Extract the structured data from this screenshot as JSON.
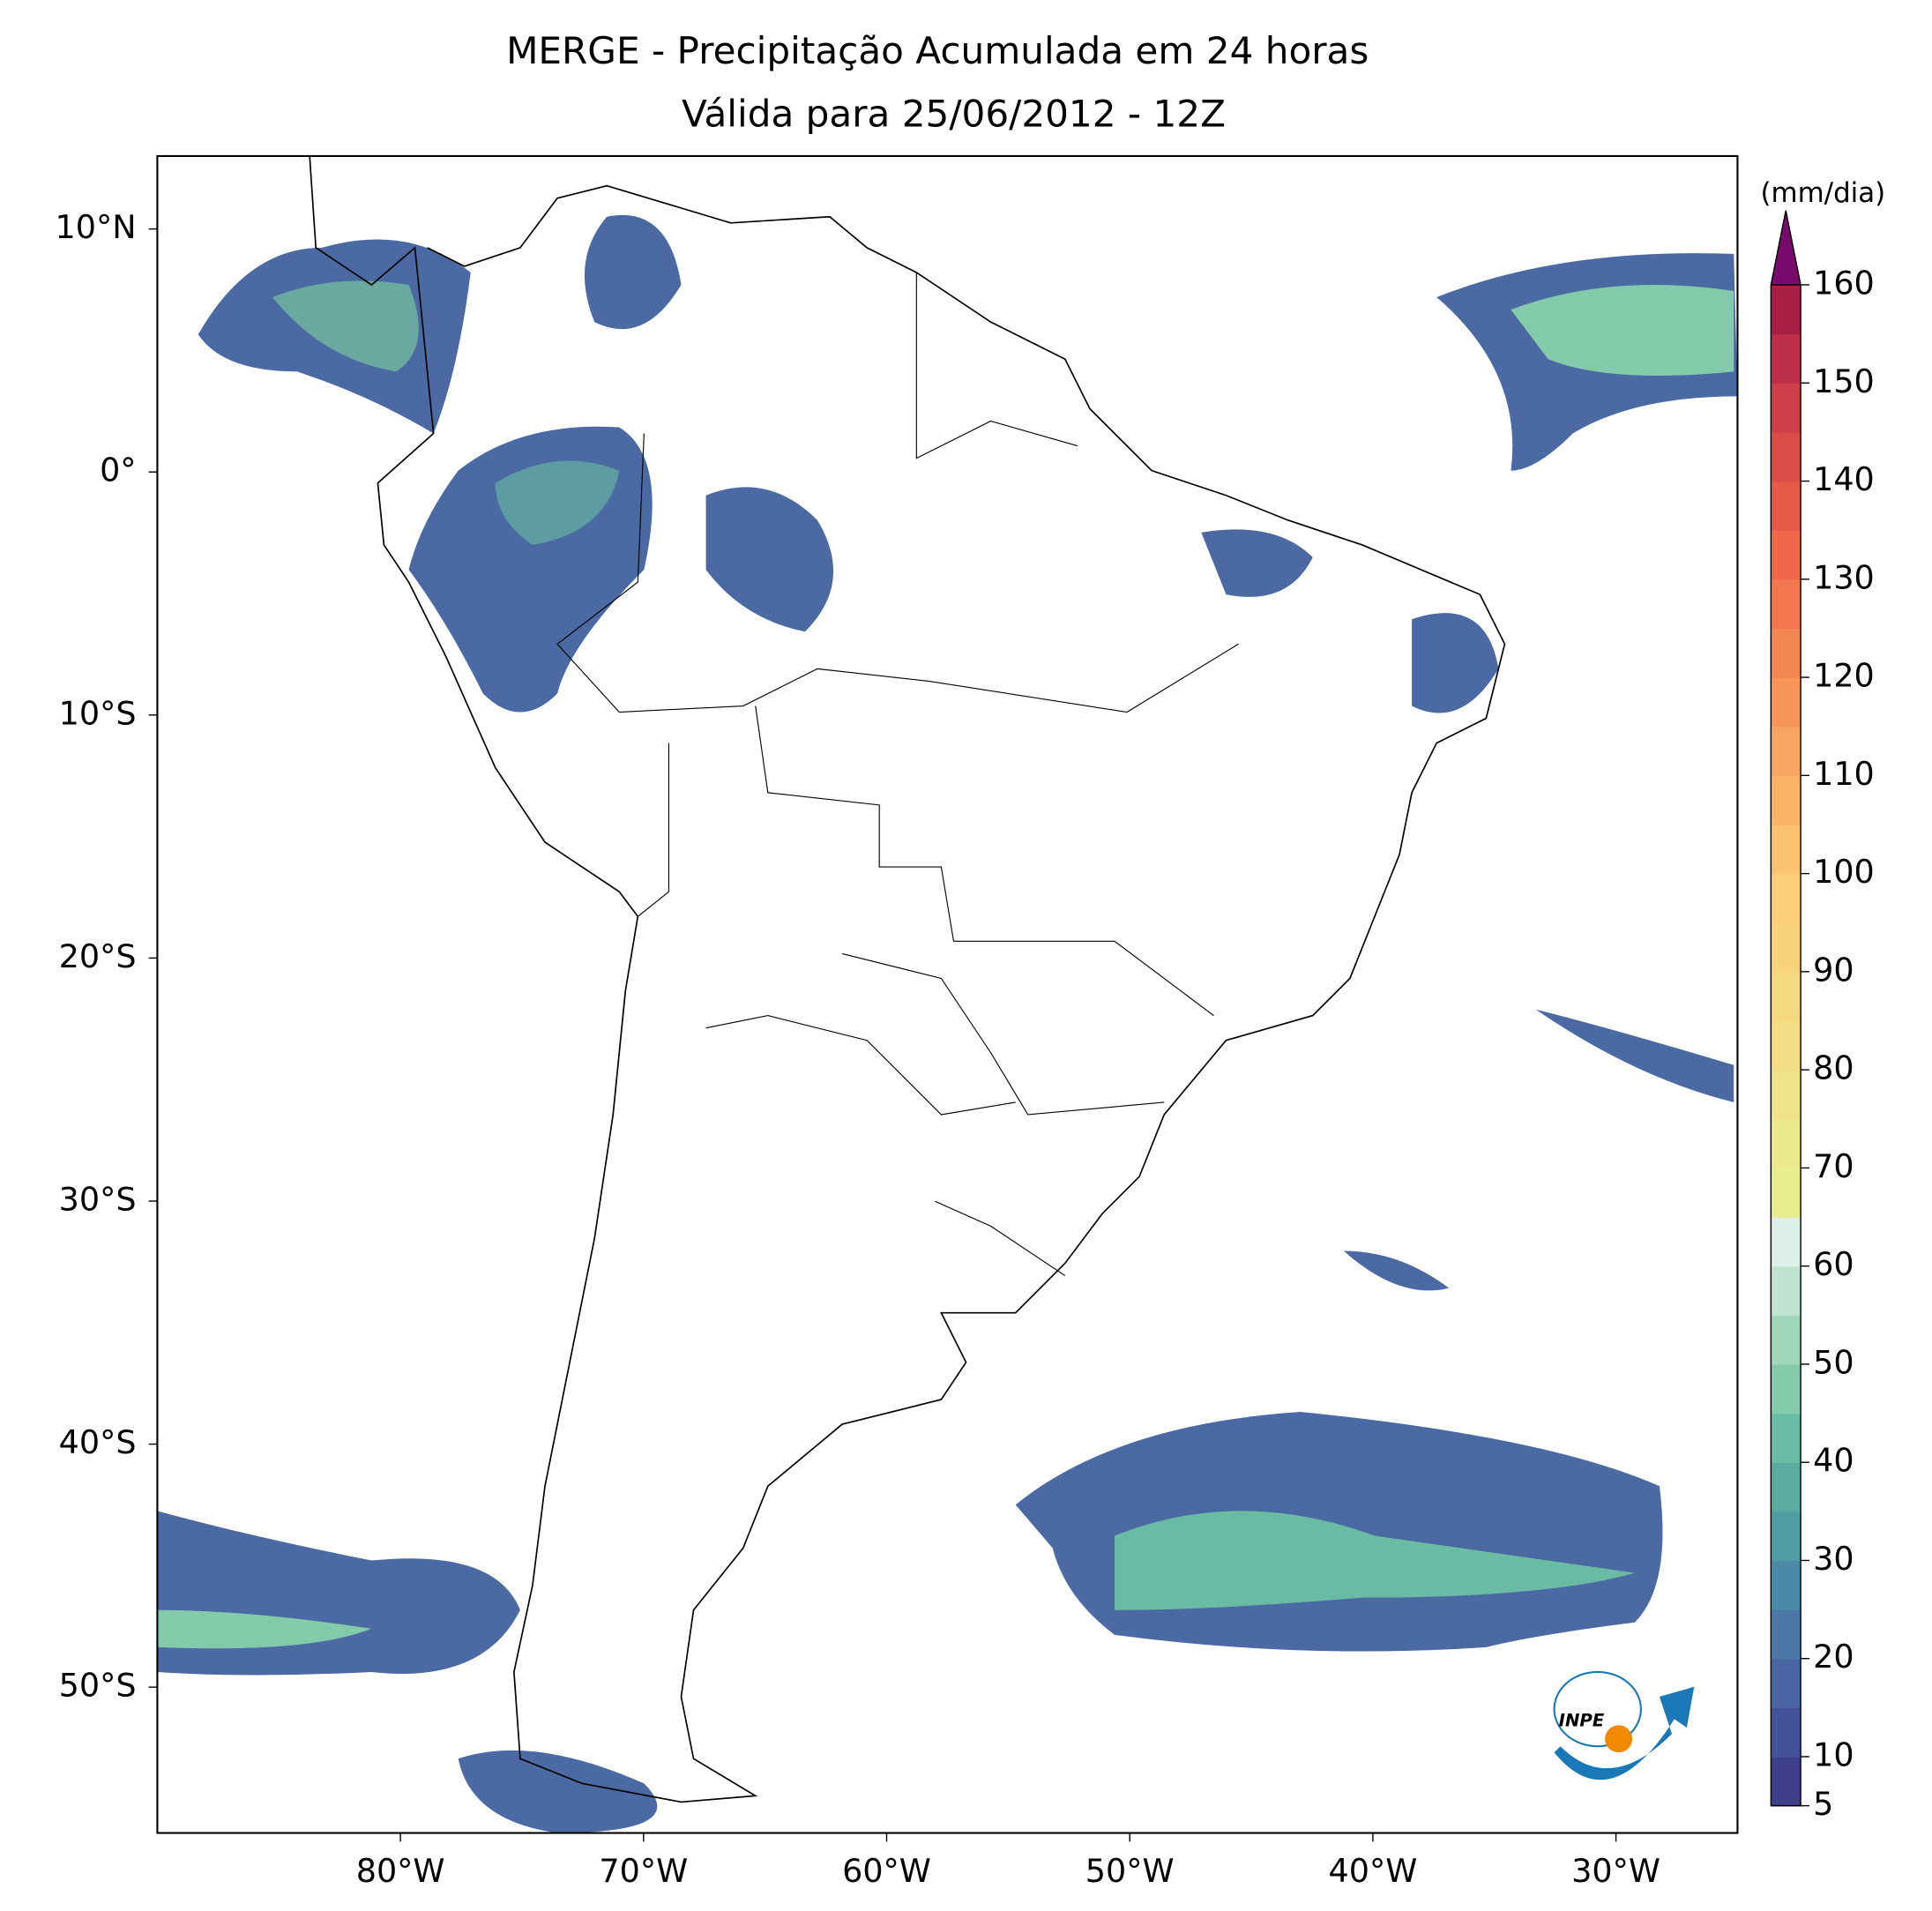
{
  "title": [
    "MERGE - Precipitação Acumulada em 24 horas",
    "Válida para 25/06/2012 - 12Z"
  ],
  "map": {
    "xlim": [
      -90,
      -25
    ],
    "ylim": [
      -56,
      13
    ],
    "xticks": [
      {
        "value": -80,
        "label": "80°W"
      },
      {
        "value": -70,
        "label": "70°W"
      },
      {
        "value": -60,
        "label": "60°W"
      },
      {
        "value": -50,
        "label": "50°W"
      },
      {
        "value": -40,
        "label": "40°W"
      },
      {
        "value": -30,
        "label": "30°W"
      }
    ],
    "yticks": [
      {
        "value": 10,
        "label": "10°N"
      },
      {
        "value": 0,
        "label": "0°"
      },
      {
        "value": -10,
        "label": "10°S"
      },
      {
        "value": -20,
        "label": "20°S"
      },
      {
        "value": -30,
        "label": "30°S"
      },
      {
        "value": -40,
        "label": "40°S"
      },
      {
        "value": -50,
        "label": "50°S"
      }
    ]
  },
  "colorbar": {
    "label": "(mm/dia)",
    "lim": [
      5,
      160
    ],
    "ticks": [
      5,
      10,
      20,
      30,
      40,
      50,
      60,
      70,
      80,
      90,
      100,
      110,
      120,
      130,
      140,
      150,
      160
    ],
    "colors": [
      "#403f8c",
      "#44529a",
      "#4a65a3",
      "#4c78a8",
      "#4b8aa6",
      "#4f9ca3",
      "#5aaca1",
      "#6abba3",
      "#83caab",
      "#a0d6ba",
      "#bfe3d0",
      "#dcefe9",
      "#e8ee8c",
      "#ebe98a",
      "#efe388",
      "#f3dd85",
      "#f6d880",
      "#f9d27c",
      "#fcce78",
      "#fbc270",
      "#f9b468",
      "#f8a562",
      "#f6955a",
      "#f48654",
      "#f2774e",
      "#ee6849",
      "#e65a47",
      "#dc4c46",
      "#cd3e48",
      "#bd2f48",
      "#a81f46"
    ],
    "extend_color": "#7a0a6e"
  },
  "logo": {
    "text": "INPE"
  }
}
